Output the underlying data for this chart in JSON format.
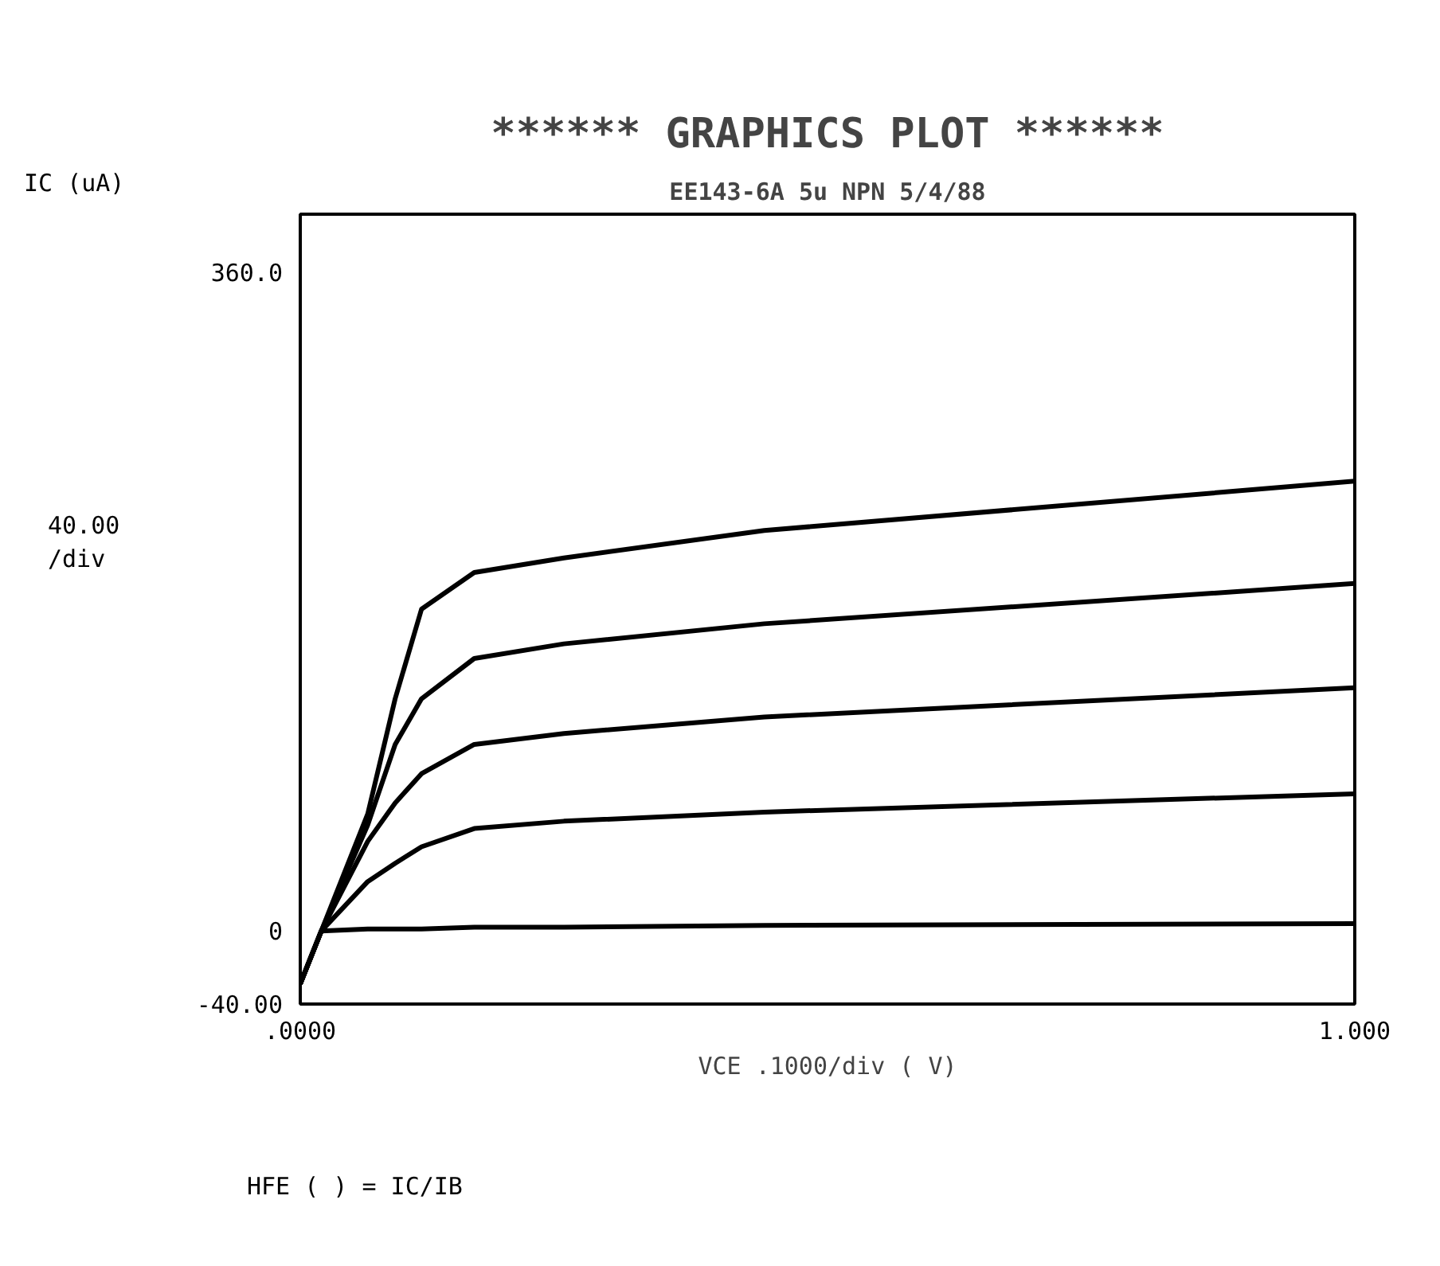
{
  "chart_data": {
    "type": "line",
    "title": "****** GRAPHICS PLOT ******",
    "subtitle": "EE143-6A 5u NPN 5/4/88",
    "ylabel": "IC (uA)",
    "xlabel": "VCE .1000/div ( V)",
    "annotations": [
      "40.00 /div",
      "HFE ( ) = IC/IB"
    ],
    "x": [
      0,
      0.02,
      0.064,
      0.09,
      0.115,
      0.165,
      0.25,
      0.44,
      1.0
    ],
    "series": [
      {
        "color": "#000000",
        "values": [
          -29,
          0,
          64,
          127,
          176,
          196,
          204,
          219,
          246
        ]
      },
      {
        "color": "#000000",
        "values": [
          -29,
          0,
          58,
          102,
          127,
          149,
          157,
          168,
          190
        ]
      },
      {
        "color": "#000000",
        "values": [
          -29,
          0,
          49,
          70,
          86,
          102,
          108,
          117,
          133
        ]
      },
      {
        "color": "#000000",
        "values": [
          -29,
          0,
          27,
          37,
          46,
          56,
          60,
          65,
          75
        ]
      },
      {
        "color": "#000000",
        "values": [
          -29,
          0,
          1,
          1,
          1,
          2,
          2,
          3,
          4
        ]
      }
    ],
    "xlim": [
      0,
      1.0
    ],
    "xticks": [
      {
        "value": 0,
        "label": ".0000"
      },
      {
        "value": 1.0,
        "label": "1.000"
      }
    ],
    "ylim": [
      -40,
      392
    ],
    "yticks": [
      {
        "value": -40,
        "label": "-40.00"
      },
      {
        "value": 0,
        "label": "0"
      },
      {
        "value": 360,
        "label": "360.0"
      }
    ],
    "grid": false
  }
}
